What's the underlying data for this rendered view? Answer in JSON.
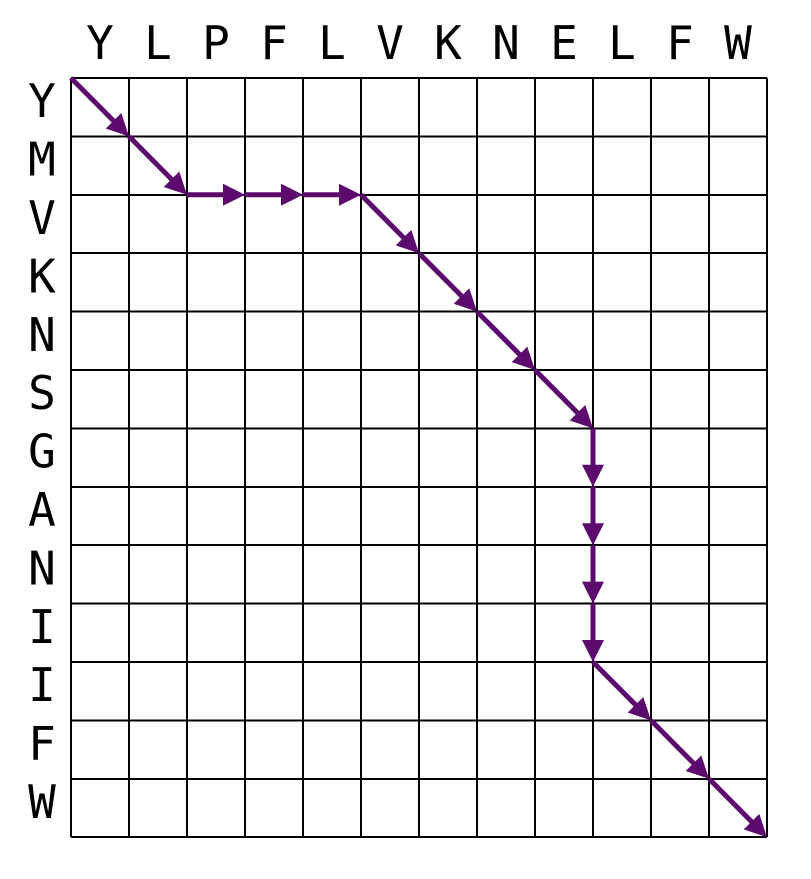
{
  "alignment": {
    "top_sequence": [
      "Y",
      "L",
      "P",
      "F",
      "L",
      "V",
      "K",
      "N",
      "E",
      "L",
      "F",
      "W"
    ],
    "left_sequence": [
      "Y",
      "M",
      "V",
      "K",
      "N",
      "S",
      "G",
      "A",
      "N",
      "I",
      "I",
      "F",
      "W"
    ],
    "path": [
      [
        0,
        0
      ],
      [
        1,
        1
      ],
      [
        2,
        2
      ],
      [
        2,
        3
      ],
      [
        2,
        4
      ],
      [
        2,
        5
      ],
      [
        3,
        6
      ],
      [
        4,
        7
      ],
      [
        5,
        8
      ],
      [
        6,
        9
      ],
      [
        7,
        9
      ],
      [
        8,
        9
      ],
      [
        9,
        9
      ],
      [
        10,
        9
      ],
      [
        11,
        10
      ],
      [
        12,
        11
      ],
      [
        13,
        12
      ]
    ]
  },
  "colors": {
    "path": "#5c0a6e",
    "grid": "#000000",
    "text": "#000000",
    "background": "#ffffff"
  }
}
